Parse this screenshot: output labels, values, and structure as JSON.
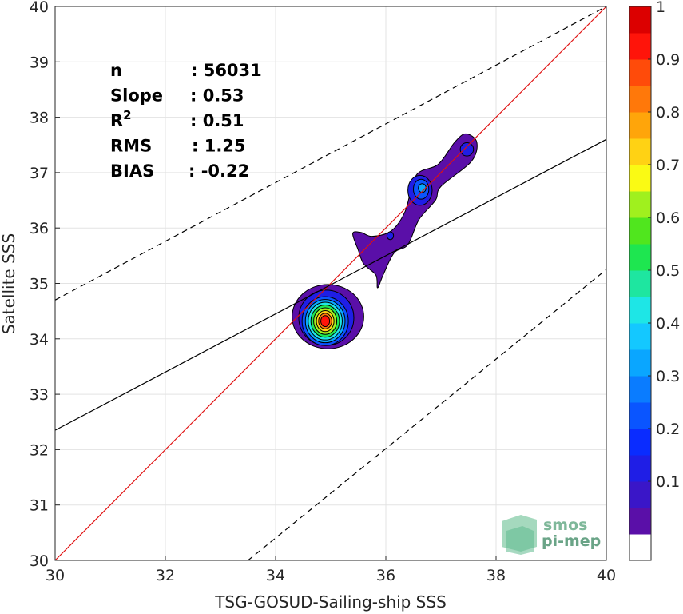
{
  "chart_data": {
    "type": "heatmap",
    "subtype": "2D density contour scatter",
    "xlabel": "TSG-GOSUD-Sailing-ship SSS",
    "ylabel": "Satellite SSS",
    "xlim": [
      30,
      40
    ],
    "ylim": [
      30,
      40
    ],
    "x_ticks": [
      "30",
      "32",
      "34",
      "36",
      "38",
      "40"
    ],
    "y_ticks": [
      "30",
      "31",
      "32",
      "33",
      "34",
      "35",
      "36",
      "37",
      "38",
      "39",
      "40"
    ],
    "grid": true,
    "colorbar": {
      "range": [
        0,
        1
      ],
      "levels": 20,
      "ticks": [
        "0.1",
        "0.2",
        "0.3",
        "0.4",
        "0.5",
        "0.6",
        "0.7",
        "0.8",
        "0.9",
        "1"
      ],
      "colors": [
        "#ffffff",
        "#5a0fa8",
        "#3a16c8",
        "#1f1ee6",
        "#0a2cff",
        "#0a55ff",
        "#0a7cff",
        "#0aa6ff",
        "#14c8ff",
        "#1ee6e6",
        "#1ee6a0",
        "#1ee650",
        "#50e61e",
        "#a0f01e",
        "#fafa14",
        "#ffd214",
        "#ffa50a",
        "#ff780a",
        "#ff4b0a",
        "#ff140a",
        "#dc0000",
        "#a00000"
      ]
    },
    "stats": [
      {
        "label": "n",
        "value": ": 56031"
      },
      {
        "label": "Slope",
        "value": ": 0.53"
      },
      {
        "label": "R",
        "sup": "2",
        "value": ": 0.51"
      },
      {
        "label": "RMS",
        "value": ": 1.25"
      },
      {
        "label": "BIAS",
        "value": ": -0.22"
      }
    ],
    "lines": [
      {
        "name": "identity",
        "color": "#e01010",
        "points": [
          [
            30,
            30
          ],
          [
            40,
            40
          ]
        ]
      },
      {
        "name": "regression",
        "color": "#000000",
        "points": [
          [
            30,
            32.35
          ],
          [
            40,
            37.6
          ]
        ]
      },
      {
        "name": "upper-bound",
        "color": "#000000",
        "dashed": true,
        "points": [
          [
            30,
            34.7
          ],
          [
            40,
            40
          ]
        ]
      },
      {
        "name": "lower-bound",
        "color": "#000000",
        "dashed": true,
        "points": [
          [
            33.5,
            30
          ],
          [
            40,
            35.25
          ]
        ]
      }
    ],
    "clusters": [
      {
        "name": "cluster-main",
        "center": [
          34.9,
          34.32
        ],
        "levels": [
          {
            "v": 0.05,
            "rx": 0.65,
            "ry": 0.58,
            "cx": 34.95,
            "cy": 34.4
          },
          {
            "v": 0.15,
            "rx": 0.5,
            "ry": 0.5,
            "cx": 34.92,
            "cy": 34.38
          },
          {
            "v": 0.25,
            "rx": 0.42,
            "ry": 0.44
          },
          {
            "v": 0.35,
            "rx": 0.36,
            "ry": 0.39
          },
          {
            "v": 0.45,
            "rx": 0.31,
            "ry": 0.34
          },
          {
            "v": 0.55,
            "rx": 0.26,
            "ry": 0.29
          },
          {
            "v": 0.65,
            "rx": 0.21,
            "ry": 0.24
          },
          {
            "v": 0.75,
            "rx": 0.16,
            "ry": 0.19
          },
          {
            "v": 0.85,
            "rx": 0.12,
            "ry": 0.14
          },
          {
            "v": 0.95,
            "rx": 0.08,
            "ry": 0.1
          }
        ]
      },
      {
        "name": "cluster-tail",
        "outline": [
          [
            35.75,
            35.85
          ],
          [
            36.1,
            35.95
          ],
          [
            36.35,
            36.3
          ],
          [
            36.55,
            36.95
          ],
          [
            36.95,
            37.15
          ],
          [
            37.25,
            37.55
          ],
          [
            37.45,
            37.7
          ],
          [
            37.65,
            37.55
          ],
          [
            37.55,
            37.2
          ],
          [
            37.0,
            36.75
          ],
          [
            36.9,
            36.5
          ],
          [
            36.6,
            36.15
          ],
          [
            36.4,
            35.7
          ],
          [
            36.15,
            35.55
          ],
          [
            35.95,
            35.15
          ],
          [
            35.85,
            34.92
          ],
          [
            35.82,
            35.15
          ],
          [
            35.6,
            35.35
          ],
          [
            35.5,
            35.6
          ],
          [
            35.4,
            35.9
          ],
          [
            35.55,
            35.92
          ]
        ],
        "levels": [
          {
            "v": 0.15,
            "rx": 0.22,
            "ry": 0.27,
            "cx": 36.62,
            "cy": 36.68
          },
          {
            "v": 0.25,
            "rx": 0.14,
            "ry": 0.18,
            "cx": 36.64,
            "cy": 36.7
          },
          {
            "v": 0.35,
            "rx": 0.07,
            "ry": 0.08,
            "cx": 36.66,
            "cy": 36.72
          },
          {
            "v": 0.15,
            "rx": 0.12,
            "ry": 0.12,
            "cx": 37.47,
            "cy": 37.42
          },
          {
            "v": 0.15,
            "rx": 0.06,
            "ry": 0.07,
            "cx": 36.08,
            "cy": 35.86
          }
        ]
      }
    ]
  },
  "watermark": {
    "line1": "smos",
    "line2": "pi-mep"
  }
}
